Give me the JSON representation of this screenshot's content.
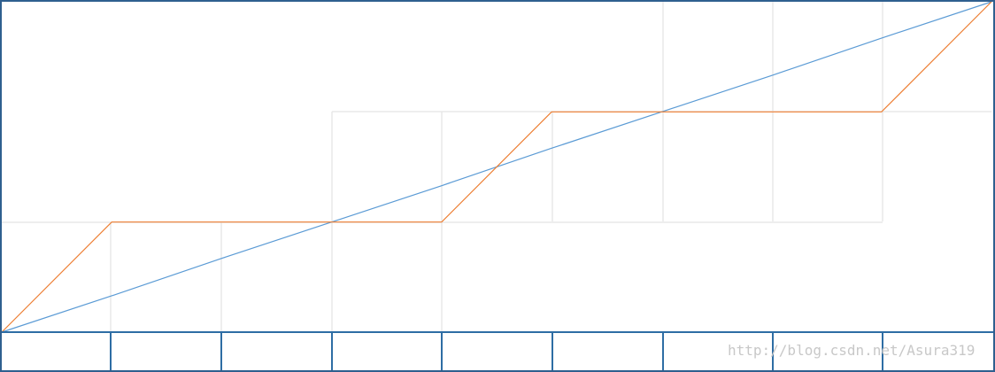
{
  "chart_data": {
    "type": "line",
    "x": [
      0,
      1,
      2,
      3,
      4,
      5,
      6,
      7,
      8,
      9
    ],
    "xlim": [
      0,
      9
    ],
    "ylim": [
      0,
      3
    ],
    "series": [
      {
        "color": "#5b9bd5",
        "values": [
          0,
          0.33,
          0.67,
          1,
          1.33,
          1.67,
          2,
          2.33,
          2.67,
          3
        ]
      },
      {
        "color": "#ed7d31",
        "values": [
          0,
          1,
          1,
          1,
          1,
          2,
          2,
          2,
          2,
          3
        ]
      }
    ],
    "watermark": "http://blog.csdn.net/Asura319"
  }
}
